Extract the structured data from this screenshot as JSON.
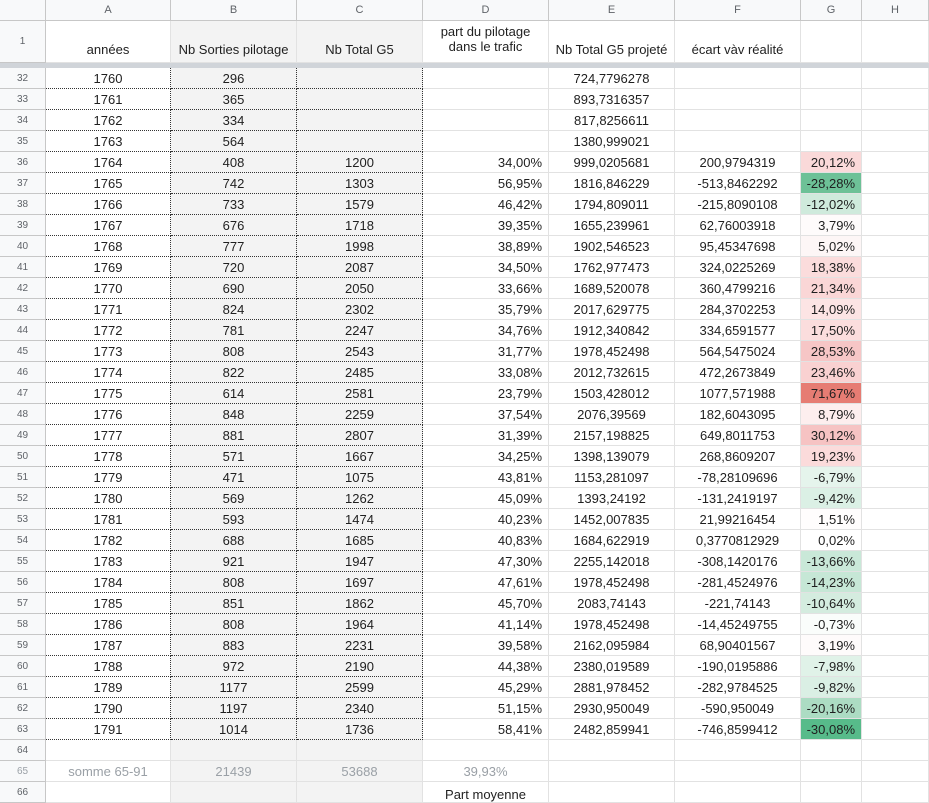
{
  "columns": [
    "A",
    "B",
    "C",
    "D",
    "E",
    "F",
    "G",
    "H"
  ],
  "header_row": {
    "num": "1",
    "a": "années",
    "b": "Nb Sorties pilotage",
    "c": "Nb Total G5",
    "d": "part du pilotage dans le trafic",
    "e": "Nb Total G5 projeté",
    "f": "écart vàv réalité",
    "g": ""
  },
  "rows": [
    {
      "num": "32",
      "a": "1760",
      "b": "296",
      "c": "",
      "d": "",
      "e": "724,7796278",
      "f": "",
      "g": "",
      "g_color": "#ffffff"
    },
    {
      "num": "33",
      "a": "1761",
      "b": "365",
      "c": "",
      "d": "",
      "e": "893,7316357",
      "f": "",
      "g": "",
      "g_color": "#ffffff"
    },
    {
      "num": "34",
      "a": "1762",
      "b": "334",
      "c": "",
      "d": "",
      "e": "817,8256611",
      "f": "",
      "g": "",
      "g_color": "#ffffff"
    },
    {
      "num": "35",
      "a": "1763",
      "b": "564",
      "c": "",
      "d": "",
      "e": "1380,999021",
      "f": "",
      "g": "",
      "g_color": "#ffffff"
    },
    {
      "num": "36",
      "a": "1764",
      "b": "408",
      "c": "1200",
      "d": "34,00%",
      "e": "999,0205681",
      "f": "200,9794319",
      "g": "20,12%",
      "g_color": "#fad9d9"
    },
    {
      "num": "37",
      "a": "1765",
      "b": "742",
      "c": "1303",
      "d": "56,95%",
      "e": "1816,846229",
      "f": "-513,8462292",
      "g": "-28,28%",
      "g_color": "#6dc197"
    },
    {
      "num": "38",
      "a": "1766",
      "b": "733",
      "c": "1579",
      "d": "46,42%",
      "e": "1794,809011",
      "f": "-215,8090108",
      "g": "-12,02%",
      "g_color": "#cfeadc"
    },
    {
      "num": "39",
      "a": "1767",
      "b": "676",
      "c": "1718",
      "d": "39,35%",
      "e": "1655,239961",
      "f": "62,76003918",
      "g": "3,79%",
      "g_color": "#fefbfb"
    },
    {
      "num": "40",
      "a": "1768",
      "b": "777",
      "c": "1998",
      "d": "38,89%",
      "e": "1902,546523",
      "f": "95,45347698",
      "g": "5,02%",
      "g_color": "#fdf6f6"
    },
    {
      "num": "41",
      "a": "1769",
      "b": "720",
      "c": "2087",
      "d": "34,50%",
      "e": "1762,977473",
      "f": "324,0225269",
      "g": "18,38%",
      "g_color": "#fbdcdc"
    },
    {
      "num": "42",
      "a": "1770",
      "b": "690",
      "c": "2050",
      "d": "33,66%",
      "e": "1689,520078",
      "f": "360,4799216",
      "g": "21,34%",
      "g_color": "#fad6d6"
    },
    {
      "num": "43",
      "a": "1771",
      "b": "824",
      "c": "2302",
      "d": "35,79%",
      "e": "2017,629775",
      "f": "284,3702253",
      "g": "14,09%",
      "g_color": "#fce4e4"
    },
    {
      "num": "44",
      "a": "1772",
      "b": "781",
      "c": "2247",
      "d": "34,76%",
      "e": "1912,340842",
      "f": "334,6591577",
      "g": "17,50%",
      "g_color": "#fbdddd"
    },
    {
      "num": "45",
      "a": "1773",
      "b": "808",
      "c": "2543",
      "d": "31,77%",
      "e": "1978,452498",
      "f": "564,5475024",
      "g": "28,53%",
      "g_color": "#f6c6c6"
    },
    {
      "num": "46",
      "a": "1774",
      "b": "822",
      "c": "2485",
      "d": "33,08%",
      "e": "2012,732615",
      "f": "472,2673849",
      "g": "23,46%",
      "g_color": "#f9d1d1"
    },
    {
      "num": "47",
      "a": "1775",
      "b": "614",
      "c": "2581",
      "d": "23,79%",
      "e": "1503,428012",
      "f": "1077,571988",
      "g": "71,67%",
      "g_color": "#e67c73"
    },
    {
      "num": "48",
      "a": "1776",
      "b": "848",
      "c": "2259",
      "d": "37,54%",
      "e": "2076,39569",
      "f": "182,6043095",
      "g": "8,79%",
      "g_color": "#fdeeee"
    },
    {
      "num": "49",
      "a": "1777",
      "b": "881",
      "c": "2807",
      "d": "31,39%",
      "e": "2157,198825",
      "f": "649,8011753",
      "g": "30,12%",
      "g_color": "#f6c3c3"
    },
    {
      "num": "50",
      "a": "1778",
      "b": "571",
      "c": "1667",
      "d": "34,25%",
      "e": "1398,139079",
      "f": "268,8609207",
      "g": "19,23%",
      "g_color": "#fbdbdb"
    },
    {
      "num": "51",
      "a": "1779",
      "b": "471",
      "c": "1075",
      "d": "43,81%",
      "e": "1153,281097",
      "f": "-78,28109696",
      "g": "-6,79%",
      "g_color": "#e5f4ec"
    },
    {
      "num": "52",
      "a": "1780",
      "b": "569",
      "c": "1262",
      "d": "45,09%",
      "e": "1393,24192",
      "f": "-131,2419197",
      "g": "-9,42%",
      "g_color": "#dbf0e5"
    },
    {
      "num": "53",
      "a": "1781",
      "b": "593",
      "c": "1474",
      "d": "40,23%",
      "e": "1452,007835",
      "f": "21,99216454",
      "g": "1,51%",
      "g_color": "#fffdfd"
    },
    {
      "num": "54",
      "a": "1782",
      "b": "688",
      "c": "1685",
      "d": "40,83%",
      "e": "1684,622919",
      "f": "0,3770812929",
      "g": "0,02%",
      "g_color": "#ffffff"
    },
    {
      "num": "55",
      "a": "1783",
      "b": "921",
      "c": "1947",
      "d": "47,30%",
      "e": "2255,142018",
      "f": "-308,1420176",
      "g": "-13,66%",
      "g_color": "#c9e8d8"
    },
    {
      "num": "56",
      "a": "1784",
      "b": "808",
      "c": "1697",
      "d": "47,61%",
      "e": "1978,452498",
      "f": "-281,4524976",
      "g": "-14,23%",
      "g_color": "#c6e7d6"
    },
    {
      "num": "57",
      "a": "1785",
      "b": "851",
      "c": "1862",
      "d": "45,70%",
      "e": "2083,74143",
      "f": "-221,74143",
      "g": "-10,64%",
      "g_color": "#d4ecdf"
    },
    {
      "num": "58",
      "a": "1786",
      "b": "808",
      "c": "1964",
      "d": "41,14%",
      "e": "1978,452498",
      "f": "-14,45249755",
      "g": "-0,73%",
      "g_color": "#fafdfb"
    },
    {
      "num": "59",
      "a": "1787",
      "b": "883",
      "c": "2231",
      "d": "39,58%",
      "e": "2162,095984",
      "f": "68,90401567",
      "g": "3,19%",
      "g_color": "#fefbfb"
    },
    {
      "num": "60",
      "a": "1788",
      "b": "972",
      "c": "2190",
      "d": "44,38%",
      "e": "2380,019589",
      "f": "-190,0195886",
      "g": "-7,98%",
      "g_color": "#e0f2e8"
    },
    {
      "num": "61",
      "a": "1789",
      "b": "1177",
      "c": "2599",
      "d": "45,29%",
      "e": "2881,978452",
      "f": "-282,9784525",
      "g": "-9,82%",
      "g_color": "#daefe4"
    },
    {
      "num": "62",
      "a": "1790",
      "b": "1197",
      "c": "2340",
      "d": "51,15%",
      "e": "2930,950049",
      "f": "-590,950049",
      "g": "-20,16%",
      "g_color": "#acdcc3"
    },
    {
      "num": "63",
      "a": "1791",
      "b": "1014",
      "c": "1736",
      "d": "58,41%",
      "e": "2482,859941",
      "f": "-746,8599412",
      "g": "-30,08%",
      "g_color": "#57bb8a"
    }
  ],
  "empty_row": {
    "num": "64"
  },
  "sum_row": {
    "num": "65",
    "a": "somme 65-91",
    "b": "21439",
    "c": "53688",
    "d": "39,93%"
  },
  "last_row": {
    "num": "66",
    "d": "Part moyenne"
  }
}
